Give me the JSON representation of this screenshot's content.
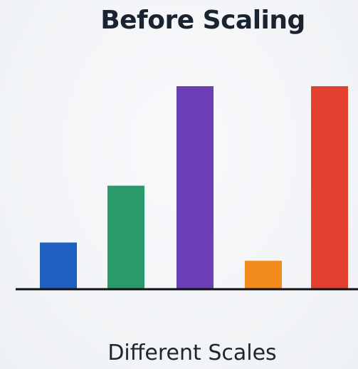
{
  "chart_data": {
    "type": "bar",
    "title": "Before Scaling",
    "xlabel": "Different Scales",
    "ylabel": "",
    "categories": [
      "",
      "",
      "",
      "",
      ""
    ],
    "values": [
      23,
      51,
      100,
      14,
      100
    ],
    "ylim": [
      0,
      100
    ],
    "colors": [
      "#1f5fbf",
      "#2a9a6a",
      "#6b3fb5",
      "#f28a1c",
      "#e3402f"
    ],
    "axis_color": "#111111",
    "grid": false,
    "legend": "none"
  }
}
